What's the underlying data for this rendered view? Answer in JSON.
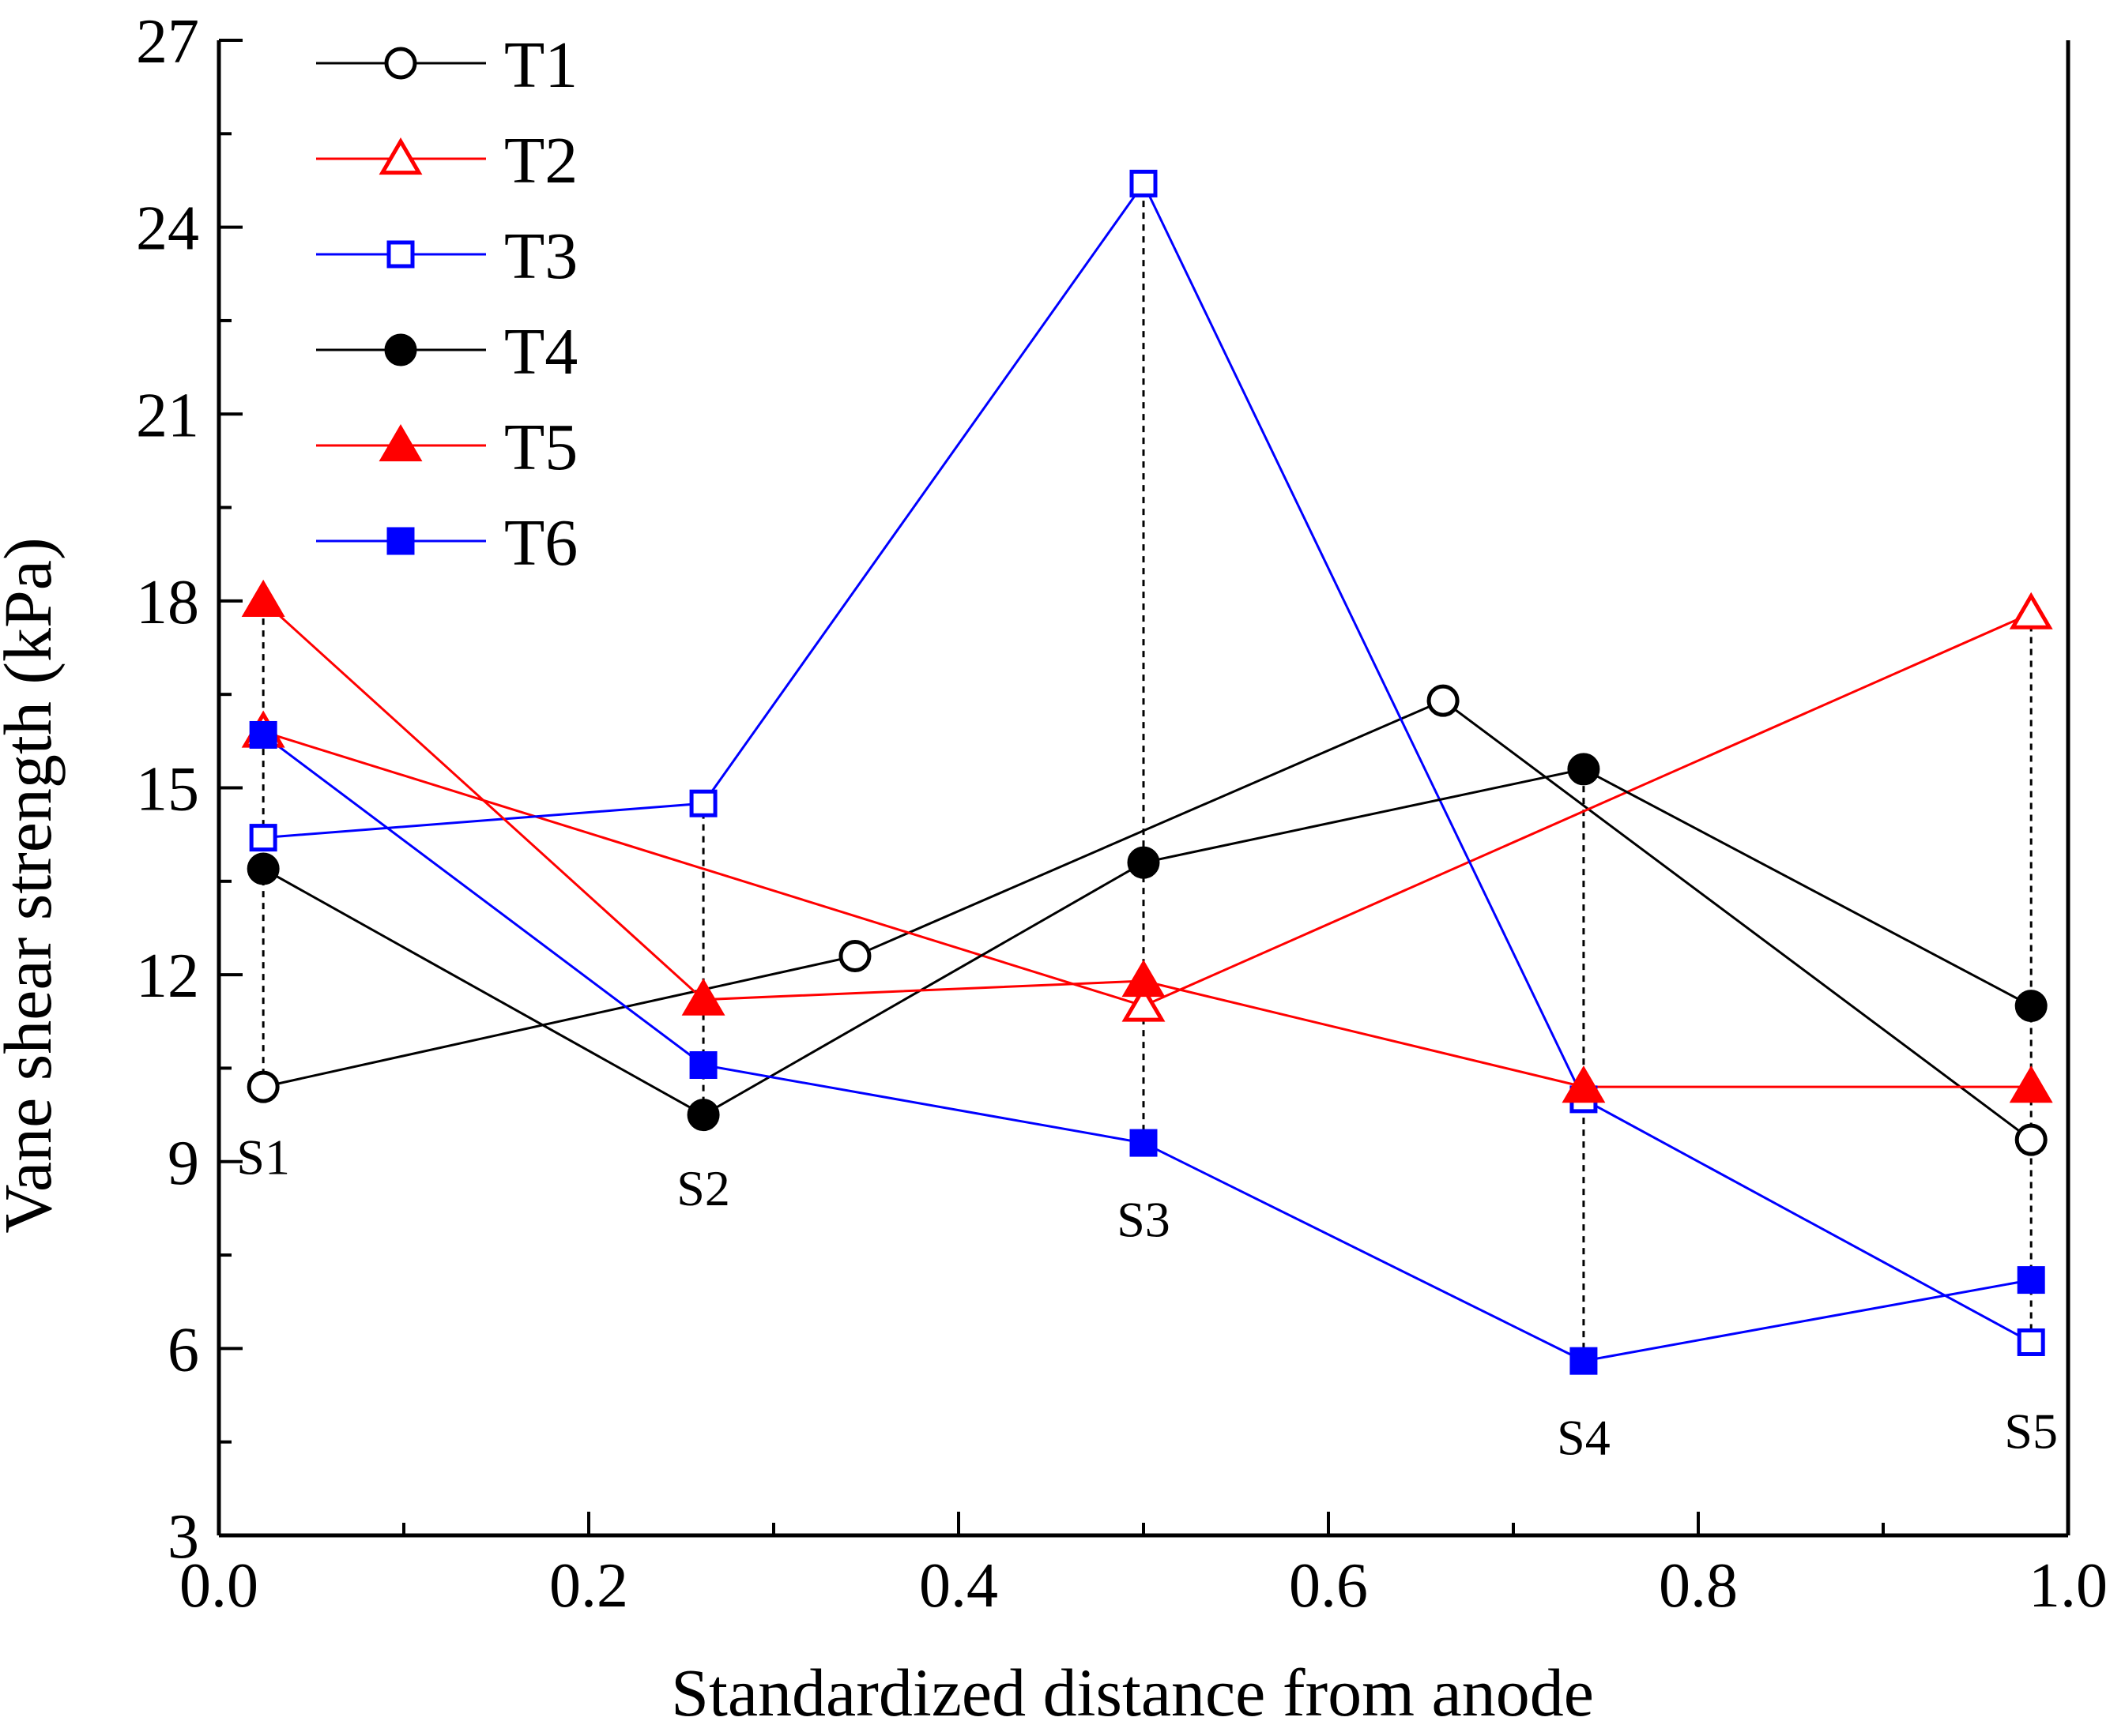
{
  "chart_data": {
    "type": "line",
    "title": "",
    "xlabel": "Standardized distance from anode",
    "ylabel": "Vane shear strength (kPa)",
    "xlim": [
      0.0,
      1.0
    ],
    "ylim": [
      3,
      27
    ],
    "x_ticks": [
      "0.0",
      "0.2",
      "0.4",
      "0.6",
      "0.8",
      "1.0"
    ],
    "x_tick_values": [
      0.0,
      0.2,
      0.4,
      0.6,
      0.8,
      1.0
    ],
    "x_minor_tick_values": [
      0.1,
      0.3,
      0.5,
      0.7,
      0.9
    ],
    "y_ticks": [
      "3",
      "6",
      "9",
      "12",
      "15",
      "18",
      "21",
      "24",
      "27"
    ],
    "y_tick_values": [
      3,
      6,
      9,
      12,
      15,
      18,
      21,
      24,
      27
    ],
    "grid": false,
    "legend": {
      "placement": "top-left"
    },
    "series": [
      {
        "name": "T1",
        "color": "#000000",
        "marker": "circle-open",
        "x": [
          0.024,
          0.344,
          0.662,
          0.98
        ],
        "y": [
          10.2,
          12.3,
          16.4,
          9.35
        ]
      },
      {
        "name": "T2",
        "color": "#ff0000",
        "marker": "triangle-open",
        "x": [
          0.024,
          0.5,
          0.98
        ],
        "y": [
          15.9,
          11.5,
          17.8
        ]
      },
      {
        "name": "T3",
        "color": "#0000ff",
        "marker": "square-open",
        "x": [
          0.024,
          0.262,
          0.5,
          0.738,
          0.98
        ],
        "y": [
          14.2,
          14.75,
          24.7,
          10.0,
          6.1
        ]
      },
      {
        "name": "T4",
        "color": "#000000",
        "marker": "circle-filled",
        "x": [
          0.024,
          0.262,
          0.5,
          0.738,
          0.98
        ],
        "y": [
          13.7,
          9.75,
          13.8,
          15.3,
          11.5
        ]
      },
      {
        "name": "T5",
        "color": "#ff0000",
        "marker": "triangle-filled",
        "x": [
          0.024,
          0.262,
          0.5,
          0.738,
          0.98
        ],
        "y": [
          18.0,
          11.6,
          11.9,
          10.2,
          10.2
        ]
      },
      {
        "name": "T6",
        "color": "#0000ff",
        "marker": "square-filled",
        "x": [
          0.024,
          0.262,
          0.5,
          0.738,
          0.98
        ],
        "y": [
          15.85,
          10.55,
          9.3,
          5.8,
          7.1
        ]
      }
    ],
    "vertical_reference_lines": [
      {
        "x": 0.024,
        "y_range": [
          10.2,
          18.0
        ]
      },
      {
        "x": 0.262,
        "y_range": [
          9.75,
          14.75
        ]
      },
      {
        "x": 0.5,
        "y_range": [
          9.3,
          24.7
        ]
      },
      {
        "x": 0.738,
        "y_range": [
          5.8,
          15.3
        ]
      },
      {
        "x": 0.98,
        "y_range": [
          6.1,
          17.8
        ]
      }
    ],
    "annotations": [
      {
        "text": "S1",
        "x": 0.024,
        "y": 8.8
      },
      {
        "text": "S2",
        "x": 0.262,
        "y": 8.3
      },
      {
        "text": "S3",
        "x": 0.5,
        "y": 7.8
      },
      {
        "text": "S4",
        "x": 0.738,
        "y": 4.3
      },
      {
        "text": "S5",
        "x": 0.98,
        "y": 4.4
      }
    ]
  }
}
